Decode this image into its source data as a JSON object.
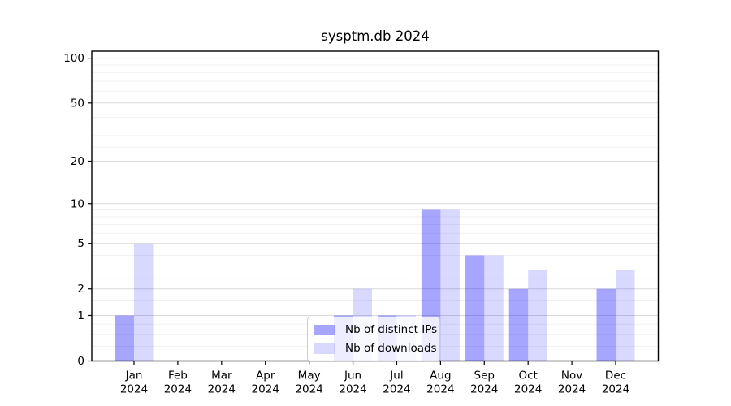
{
  "chart_data": {
    "type": "bar",
    "title": "sysptm.db 2024",
    "categories": [
      {
        "line1": "Jan",
        "line2": "2024"
      },
      {
        "line1": "Feb",
        "line2": "2024"
      },
      {
        "line1": "Mar",
        "line2": "2024"
      },
      {
        "line1": "Apr",
        "line2": "2024"
      },
      {
        "line1": "May",
        "line2": "2024"
      },
      {
        "line1": "Jun",
        "line2": "2024"
      },
      {
        "line1": "Jul",
        "line2": "2024"
      },
      {
        "line1": "Aug",
        "line2": "2024"
      },
      {
        "line1": "Sep",
        "line2": "2024"
      },
      {
        "line1": "Oct",
        "line2": "2024"
      },
      {
        "line1": "Nov",
        "line2": "2024"
      },
      {
        "line1": "Dec",
        "line2": "2024"
      }
    ],
    "series": [
      {
        "name": "Nb of distinct IPs",
        "color": "rgba(0,0,255,0.35)",
        "values": [
          1,
          0,
          0,
          0,
          0,
          1,
          1,
          9,
          4,
          2,
          0,
          2
        ]
      },
      {
        "name": "Nb of downloads",
        "color": "rgba(0,0,255,0.15)",
        "values": [
          5,
          0,
          0,
          0,
          0,
          2,
          1,
          9,
          4,
          3,
          0,
          3
        ]
      }
    ],
    "y_axis": {
      "scale": "log1p",
      "ticks": [
        0,
        1,
        2,
        5,
        10,
        20,
        50,
        100
      ],
      "minor_ticks": [
        0.25,
        0.5,
        0.75,
        1.5,
        2.5,
        3,
        4,
        6,
        7,
        8,
        9,
        15,
        25,
        30,
        40,
        60,
        70,
        80,
        90
      ],
      "top_value": 110
    },
    "legend": {
      "position": "bottom-center-inside"
    },
    "grid": true,
    "colors": {
      "major_grid": "#d9d9d9",
      "minor_grid": "#f2f2f2",
      "axis": "#000000",
      "background": "#ffffff"
    }
  }
}
